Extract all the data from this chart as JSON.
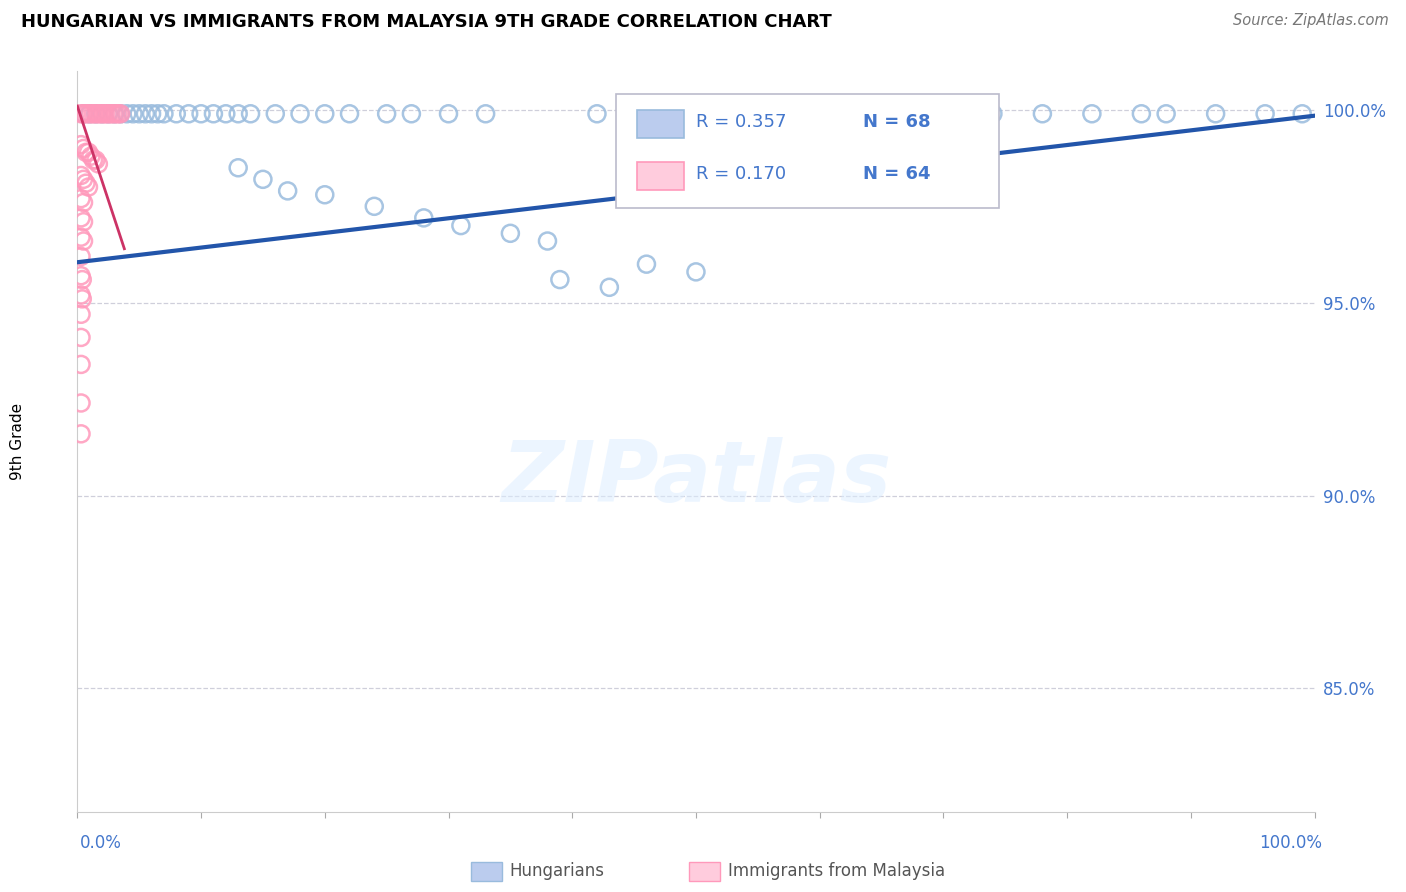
{
  "title": "HUNGARIAN VS IMMIGRANTS FROM MALAYSIA 9TH GRADE CORRELATION CHART",
  "source": "Source: ZipAtlas.com",
  "ylabel": "9th Grade",
  "xmin": 0.0,
  "xmax": 1.0,
  "ymin": 0.818,
  "ymax": 1.01,
  "yticks": [
    0.85,
    0.9,
    0.95,
    1.0
  ],
  "ytick_labels": [
    "85.0%",
    "90.0%",
    "95.0%",
    "100.0%"
  ],
  "legend_r1": "R = 0.357",
  "legend_n1": "N = 68",
  "legend_r2": "R = 0.170",
  "legend_n2": "N = 64",
  "blue_scatter_color": "#99BBDD",
  "pink_scatter_color": "#FF99BB",
  "blue_line_color": "#2255AA",
  "pink_line_color": "#CC3366",
  "label_color": "#4477CC",
  "blue_line_x0": 0.0,
  "blue_line_x1": 1.0,
  "blue_line_y0": 0.9605,
  "blue_line_y1": 0.9985,
  "pink_line_x0": 0.0,
  "pink_line_x1": 0.038,
  "pink_line_y0": 1.001,
  "pink_line_y1": 0.964,
  "blue_x": [
    0.005,
    0.01,
    0.015,
    0.02,
    0.025,
    0.03,
    0.035,
    0.04,
    0.045,
    0.05,
    0.055,
    0.06,
    0.065,
    0.07,
    0.08,
    0.09,
    0.1,
    0.11,
    0.12,
    0.13,
    0.14,
    0.16,
    0.18,
    0.2,
    0.22,
    0.13,
    0.15,
    0.17,
    0.25,
    0.27,
    0.3,
    0.33,
    0.28,
    0.31,
    0.35,
    0.38,
    0.42,
    0.46,
    0.5,
    0.54,
    0.58,
    0.61,
    0.64,
    0.68,
    0.72,
    0.74,
    0.78,
    0.82,
    0.86,
    0.88,
    0.92,
    0.96,
    0.99,
    0.46,
    0.5,
    0.39,
    0.43,
    0.2,
    0.24
  ],
  "blue_y": [
    0.999,
    0.999,
    0.999,
    0.999,
    0.999,
    0.999,
    0.999,
    0.999,
    0.999,
    0.999,
    0.999,
    0.999,
    0.999,
    0.999,
    0.999,
    0.999,
    0.999,
    0.999,
    0.999,
    0.999,
    0.999,
    0.999,
    0.999,
    0.999,
    0.999,
    0.985,
    0.982,
    0.979,
    0.999,
    0.999,
    0.999,
    0.999,
    0.972,
    0.97,
    0.968,
    0.966,
    0.999,
    0.999,
    0.999,
    0.999,
    0.999,
    0.999,
    0.999,
    0.999,
    0.999,
    0.999,
    0.999,
    0.999,
    0.999,
    0.999,
    0.999,
    0.999,
    0.999,
    0.96,
    0.958,
    0.956,
    0.954,
    0.978,
    0.975
  ],
  "pink_x": [
    0.003,
    0.005,
    0.007,
    0.009,
    0.011,
    0.013,
    0.015,
    0.017,
    0.019,
    0.021,
    0.023,
    0.025,
    0.027,
    0.029,
    0.031,
    0.033,
    0.035,
    0.003,
    0.005,
    0.007,
    0.009,
    0.011,
    0.013,
    0.015,
    0.017,
    0.003,
    0.005,
    0.007,
    0.009,
    0.003,
    0.005,
    0.003,
    0.005,
    0.003,
    0.005,
    0.003,
    0.003,
    0.004,
    0.003,
    0.004,
    0.003,
    0.003,
    0.003,
    0.003,
    0.003
  ],
  "pink_y": [
    0.999,
    0.999,
    0.999,
    0.999,
    0.999,
    0.999,
    0.999,
    0.999,
    0.999,
    0.999,
    0.999,
    0.999,
    0.999,
    0.999,
    0.999,
    0.999,
    0.999,
    0.991,
    0.99,
    0.989,
    0.989,
    0.988,
    0.987,
    0.987,
    0.986,
    0.983,
    0.982,
    0.981,
    0.98,
    0.977,
    0.976,
    0.972,
    0.971,
    0.967,
    0.966,
    0.962,
    0.957,
    0.956,
    0.952,
    0.951,
    0.947,
    0.941,
    0.934,
    0.924,
    0.916
  ]
}
